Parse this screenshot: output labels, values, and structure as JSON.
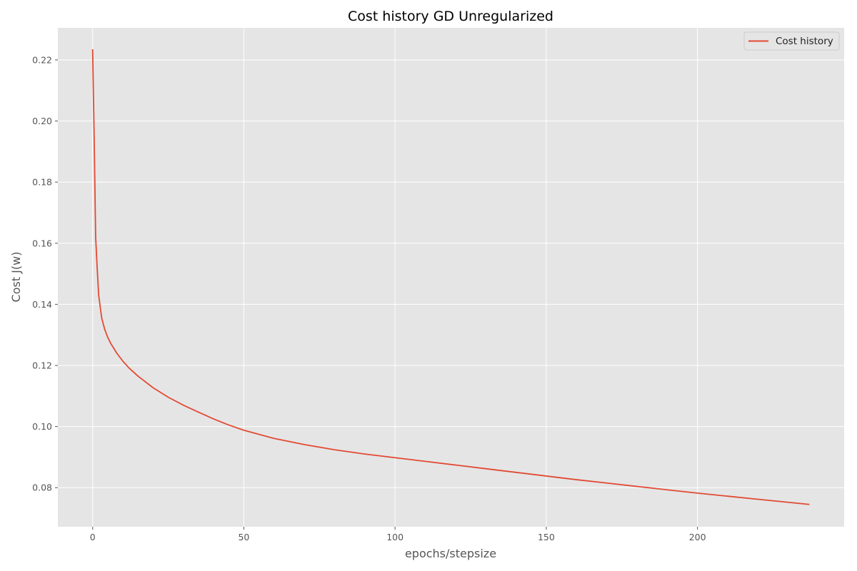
{
  "chart_data": {
    "type": "line",
    "title": "Cost history GD Unregularized",
    "xlabel": "epochs/stepsize",
    "ylabel": "Cost  J(w)",
    "xlim": [
      -11.5,
      248.5
    ],
    "ylim": [
      0.0672,
      0.2305
    ],
    "xticks": [
      0,
      50,
      100,
      150,
      200
    ],
    "yticks": [
      0.08,
      0.1,
      0.12,
      0.14,
      0.16,
      0.18,
      0.2,
      0.22
    ],
    "grid": true,
    "legend_position": "upper-right",
    "series": [
      {
        "name": "Cost history",
        "color": "#e24a33",
        "x": [
          0,
          0.5,
          1,
          1.5,
          2,
          3,
          4,
          5,
          6,
          8,
          10,
          12,
          15,
          20,
          25,
          30,
          35,
          40,
          45,
          50,
          60,
          70,
          80,
          90,
          100,
          110,
          120,
          130,
          140,
          150,
          160,
          170,
          180,
          190,
          200,
          210,
          220,
          230,
          237
        ],
        "y": [
          0.2235,
          0.195,
          0.162,
          0.152,
          0.143,
          0.1355,
          0.1318,
          0.1292,
          0.1272,
          0.124,
          0.1214,
          0.1192,
          0.1165,
          0.1127,
          0.1096,
          0.107,
          0.1047,
          0.1025,
          0.1005,
          0.0988,
          0.0961,
          0.0941,
          0.0924,
          0.091,
          0.0898,
          0.0886,
          0.0874,
          0.0862,
          0.085,
          0.0838,
          0.0826,
          0.0815,
          0.0804,
          0.0793,
          0.0782,
          0.0772,
          0.0762,
          0.0752,
          0.0745
        ]
      }
    ]
  }
}
